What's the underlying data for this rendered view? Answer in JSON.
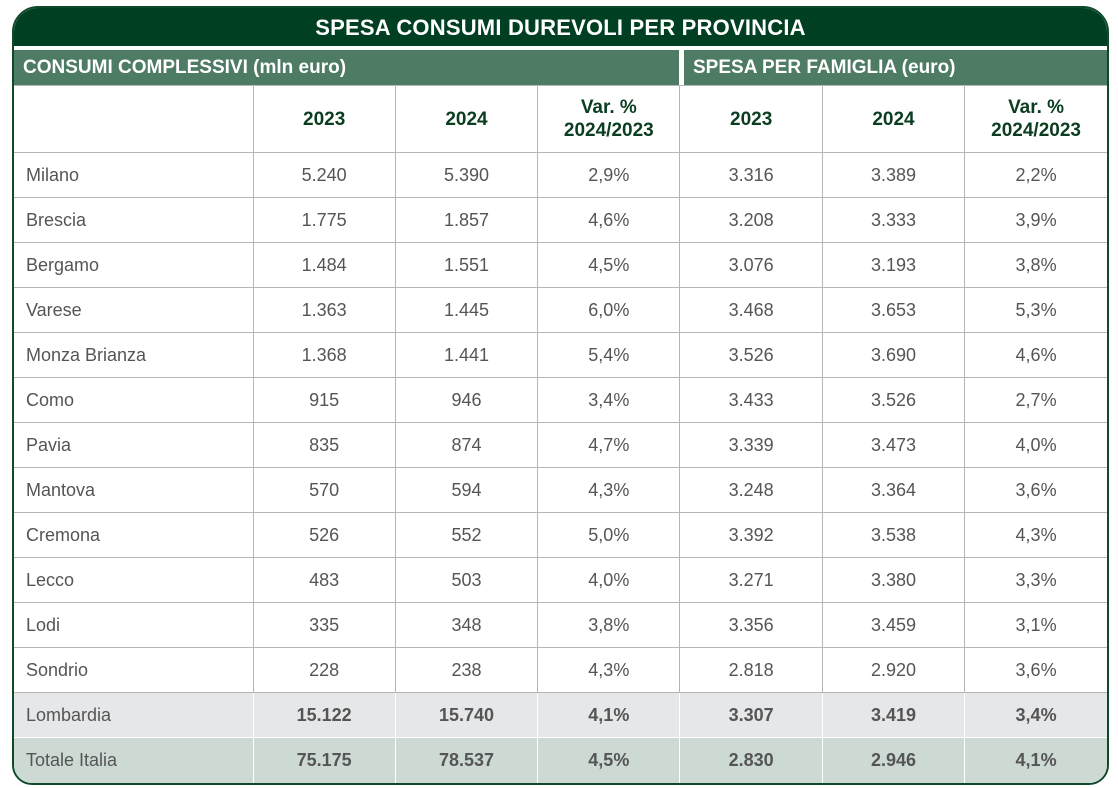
{
  "title": "SPESA CONSUMI DUREVOLI PER PROVINCIA",
  "groups": [
    "CONSUMI COMPLESSIVI (mln euro)",
    "SPESA PER FAMIGLIA (euro)"
  ],
  "headers": [
    "",
    "2023",
    "2024",
    "Var. %\n2024/2023",
    "2023",
    "2024",
    "Var. %\n2024/2023"
  ],
  "rows": [
    [
      "Milano",
      "5.240",
      "5.390",
      "2,9%",
      "3.316",
      "3.389",
      "2,2%"
    ],
    [
      "Brescia",
      "1.775",
      "1.857",
      "4,6%",
      "3.208",
      "3.333",
      "3,9%"
    ],
    [
      "Bergamo",
      "1.484",
      "1.551",
      "4,5%",
      "3.076",
      "3.193",
      "3,8%"
    ],
    [
      "Varese",
      "1.363",
      "1.445",
      "6,0%",
      "3.468",
      "3.653",
      "5,3%"
    ],
    [
      "Monza Brianza",
      "1.368",
      "1.441",
      "5,4%",
      "3.526",
      "3.690",
      "4,6%"
    ],
    [
      "Como",
      "915",
      "946",
      "3,4%",
      "3.433",
      "3.526",
      "2,7%"
    ],
    [
      "Pavia",
      "835",
      "874",
      "4,7%",
      "3.339",
      "3.473",
      "4,0%"
    ],
    [
      "Mantova",
      "570",
      "594",
      "4,3%",
      "3.248",
      "3.364",
      "3,6%"
    ],
    [
      "Cremona",
      "526",
      "552",
      "5,0%",
      "3.392",
      "3.538",
      "4,3%"
    ],
    [
      "Lecco",
      "483",
      "503",
      "4,0%",
      "3.271",
      "3.380",
      "3,3%"
    ],
    [
      "Lodi",
      "335",
      "348",
      "3,8%",
      "3.356",
      "3.459",
      "3,1%"
    ],
    [
      "Sondrio",
      "228",
      "238",
      "4,3%",
      "2.818",
      "2.920",
      "3,6%"
    ],
    [
      "Lombardia",
      "15.122",
      "15.740",
      "4,1%",
      "3.307",
      "3.419",
      "3,4%"
    ],
    [
      "Totale Italia",
      "75.175",
      "78.537",
      "4,5%",
      "2.830",
      "2.946",
      "4,1%"
    ]
  ],
  "colors": {
    "title_bg": "#003f22",
    "group_bg": "#4e7b64",
    "lombardia_bg": "#e6e7e8",
    "italia_bg": "#cddad4"
  }
}
